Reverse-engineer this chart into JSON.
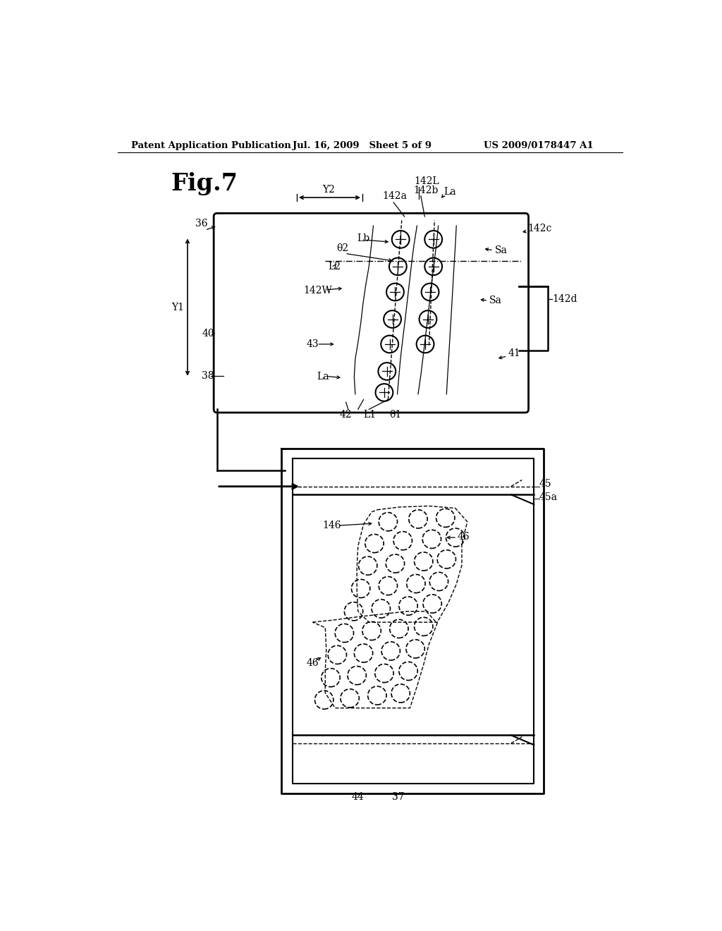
{
  "header_left": "Patent Application Publication",
  "header_mid": "Jul. 16, 2009   Sheet 5 of 9",
  "header_right": "US 2009/0178447 A1",
  "fig_label": "Fig.7",
  "bg_color": "#ffffff",
  "line_color": "#000000"
}
